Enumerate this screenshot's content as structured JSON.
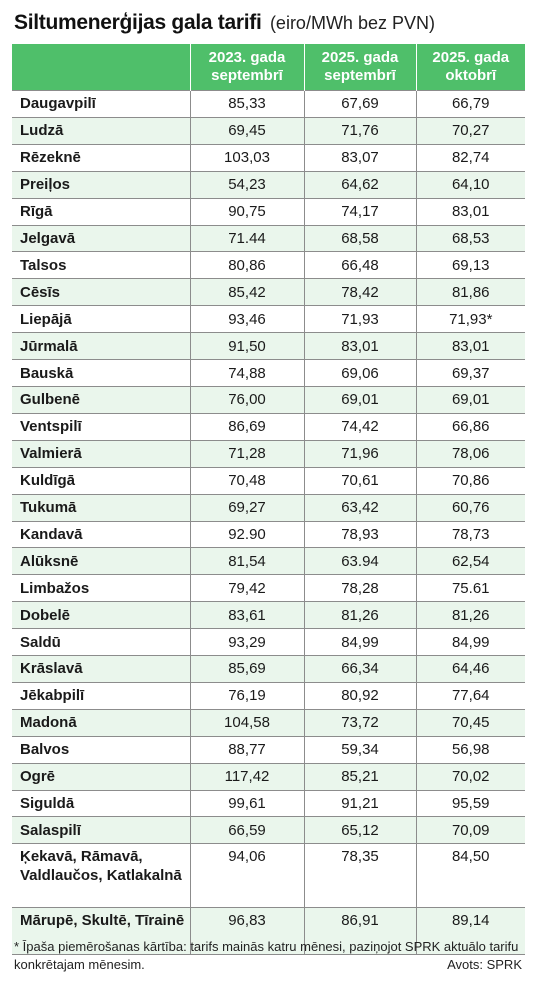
{
  "title": {
    "main": "Siltumenerģijas gala tarifi",
    "unit": "(eiro/MWh bez PVN)"
  },
  "columns": [
    {
      "line1": "2023. gada",
      "line2": "septembrī"
    },
    {
      "line1": "2025. gada",
      "line2": "septembrī"
    },
    {
      "line1": "2025. gada",
      "line2": "oktobrī"
    }
  ],
  "rows": [
    {
      "city": "Daugavpilī",
      "v1": "85,33",
      "v2": "67,69",
      "v3": "66,79"
    },
    {
      "city": "Ludzā",
      "v1": "69,45",
      "v2": "71,76",
      "v3": "70,27"
    },
    {
      "city": "Rēzeknē",
      "v1": "103,03",
      "v2": "83,07",
      "v3": "82,74"
    },
    {
      "city": "Preiļos",
      "v1": "54,23",
      "v2": "64,62",
      "v3": "64,10"
    },
    {
      "city": "Rīgā",
      "v1": "90,75",
      "v2": "74,17",
      "v3": "83,01"
    },
    {
      "city": "Jelgavā",
      "v1": "71.44",
      "v2": "68,58",
      "v3": "68,53"
    },
    {
      "city": "Talsos",
      "v1": "80,86",
      "v2": "66,48",
      "v3": "69,13"
    },
    {
      "city": "Cēsīs",
      "v1": "85,42",
      "v2": "78,42",
      "v3": "81,86"
    },
    {
      "city": "Liepājā",
      "v1": "93,46",
      "v2": "71,93",
      "v3": "71,93*"
    },
    {
      "city": "Jūrmalā",
      "v1": "91,50",
      "v2": "83,01",
      "v3": "83,01"
    },
    {
      "city": "Bauskā",
      "v1": "74,88",
      "v2": "69,06",
      "v3": "69,37"
    },
    {
      "city": "Gulbenē",
      "v1": "76,00",
      "v2": "69,01",
      "v3": "69,01"
    },
    {
      "city": "Ventspilī",
      "v1": "86,69",
      "v2": "74,42",
      "v3": "66,86"
    },
    {
      "city": "Valmierā",
      "v1": "71,28",
      "v2": "71,96",
      "v3": "78,06"
    },
    {
      "city": "Kuldīgā",
      "v1": "70,48",
      "v2": "70,61",
      "v3": "70,86"
    },
    {
      "city": "Tukumā",
      "v1": "69,27",
      "v2": "63,42",
      "v3": "60,76"
    },
    {
      "city": "Kandavā",
      "v1": "92.90",
      "v2": "78,93",
      "v3": "78,73"
    },
    {
      "city": "Alūksnē",
      "v1": "81,54",
      "v2": "63.94",
      "v3": "62,54"
    },
    {
      "city": "Limbažos",
      "v1": "79,42",
      "v2": "78,28",
      "v3": "75.61"
    },
    {
      "city": "Dobelē",
      "v1": "83,61",
      "v2": "81,26",
      "v3": "81,26"
    },
    {
      "city": "Saldū",
      "v1": "93,29",
      "v2": "84,99",
      "v3": "84,99"
    },
    {
      "city": "Krāslavā",
      "v1": "85,69",
      "v2": "66,34",
      "v3": "64,46"
    },
    {
      "city": "Jēkabpilī",
      "v1": "76,19",
      "v2": "80,92",
      "v3": "77,64"
    },
    {
      "city": "Madonā",
      "v1": "104,58",
      "v2": "73,72",
      "v3": "70,45"
    },
    {
      "city": "Balvos",
      "v1": "88,77",
      "v2": "59,34",
      "v3": "56,98"
    },
    {
      "city": "Ogrē",
      "v1": "117,42",
      "v2": "85,21",
      "v3": "70,02"
    },
    {
      "city": "Siguldā",
      "v1": "99,61",
      "v2": "91,21",
      "v3": "95,59"
    },
    {
      "city": "Salaspilī",
      "v1": "66,59",
      "v2": "65,12",
      "v3": "70,09"
    },
    {
      "city": "Ķekavā, Rāmavā, Valdlaučos, Katlakalnā",
      "v1": "94,06",
      "v2": "78,35",
      "v3": "84,50"
    },
    {
      "city": "Mārupē, Skultē, Tīrainē",
      "v1": "96,83",
      "v2": "86,91",
      "v3": "89,14"
    }
  ],
  "footnote": "* Īpaša piemērošanas kārtība: tarifs mainās katru mēnesi, paziņojot SPRK aktuālo tarifu konkrētajam mēnesim.",
  "source": "Avots: SPRK",
  "colors": {
    "header_green": "#4fbf6a",
    "row_stripe": "#eaf6ec",
    "grid_line": "#8c8c8c"
  }
}
